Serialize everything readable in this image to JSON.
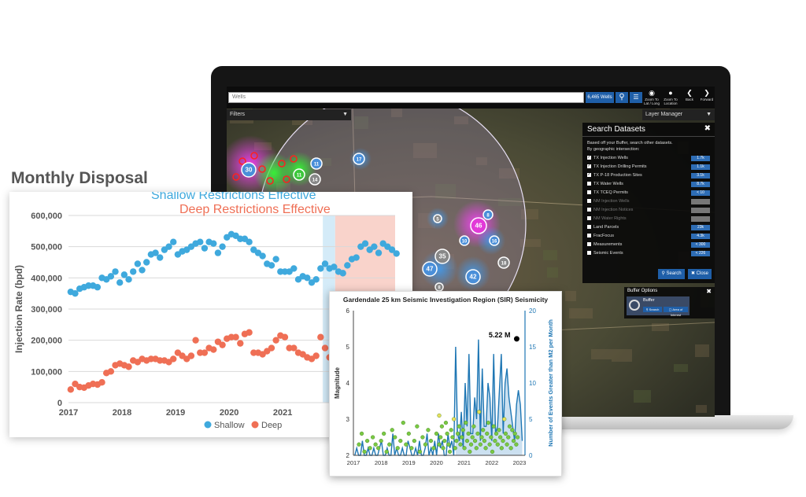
{
  "app": {
    "search_placeholder": "Wells",
    "wells_count": "6,465 Wells",
    "toolbar": [
      {
        "label": "Zoom To Lat / Long",
        "icon": "globe-icon"
      },
      {
        "label": "Zoom To Location",
        "icon": "pin-icon"
      },
      {
        "label": "Back",
        "icon": "chevron-left-icon"
      },
      {
        "label": "Forward",
        "icon": "chevron-right-icon"
      }
    ],
    "filters_label": "Filters",
    "layer_manager_label": "Layer Manager",
    "map_clusters": [
      "30",
      "11",
      "17",
      "11",
      "14",
      "46",
      "8",
      "10",
      "16",
      "35",
      "47",
      "42",
      "18",
      "5",
      "8"
    ],
    "search_datasets": {
      "title": "Search Datasets",
      "description": "Based off your Buffer, search other datasets.",
      "subtitle": "By geographic intersection:",
      "items": [
        {
          "label": "TX Injection Wells",
          "count": "1.7k",
          "checked": true,
          "enabled": true
        },
        {
          "label": "TX Injection Drilling Permits",
          "count": "1.1k",
          "checked": true,
          "enabled": true
        },
        {
          "label": "TX P-18 Production Sites",
          "count": "3.1k",
          "checked": true,
          "enabled": true
        },
        {
          "label": "TX Water Wells",
          "count": "8.7k",
          "checked": false,
          "enabled": true
        },
        {
          "label": "TX TCEQ Permits",
          "count": "< 10",
          "checked": false,
          "enabled": true
        },
        {
          "label": "NM Injection Wells",
          "count": "",
          "checked": false,
          "enabled": false
        },
        {
          "label": "NM Injection Notices",
          "count": "",
          "checked": false,
          "enabled": false
        },
        {
          "label": "NM Water Rights",
          "count": "",
          "checked": false,
          "enabled": false
        },
        {
          "label": "Land Parcels",
          "count": "23k",
          "checked": false,
          "enabled": true
        },
        {
          "label": "FracFocus",
          "count": "4.3k",
          "checked": false,
          "enabled": true
        },
        {
          "label": "Measurements",
          "count": "< 300",
          "checked": false,
          "enabled": true
        },
        {
          "label": "Seismic Events",
          "count": "< 226",
          "checked": false,
          "enabled": true
        }
      ],
      "search_label": "Search",
      "close_label": "Close"
    },
    "buffer_options": {
      "title": "Buffer Options",
      "card_label": "Buffer",
      "search_label": "Search",
      "area_label": "Area of Interest"
    }
  },
  "chart_data": [
    {
      "type": "scatter",
      "title": "Monthly Disposal",
      "annotations": [
        "Shallow Restrictions Effective",
        "Deep Restrictions Effective"
      ],
      "annotation_colors": [
        "#3fa9dd",
        "#ef6f55"
      ],
      "ylabel": "Injection Rate (bpd)",
      "xlabel": "",
      "x_ticks": [
        "2017",
        "2018",
        "2019",
        "2020",
        "2021"
      ],
      "y_ticks": [
        "0",
        "100,000",
        "200,000",
        "300,000",
        "400,000",
        "500,000",
        "600,000"
      ],
      "xlim": [
        2017,
        2023.1
      ],
      "ylim": [
        0,
        600000
      ],
      "grid": true,
      "legend_position": "bottom",
      "shaded_regions": [
        {
          "label": "Shallow Restrictions Effective",
          "from": 2021.75,
          "to": 2021.98,
          "color": "#d4ebf8"
        },
        {
          "label": "Deep Restrictions Effective",
          "from": 2021.98,
          "to": 2023.1,
          "color": "#f9d3cb"
        }
      ],
      "series": [
        {
          "name": "Shallow",
          "color": "#3fa9dd",
          "values": [
            355000,
            350000,
            365000,
            370000,
            375000,
            375000,
            370000,
            400000,
            395000,
            405000,
            420000,
            385000,
            410000,
            395000,
            420000,
            445000,
            425000,
            450000,
            475000,
            480000,
            465000,
            490000,
            500000,
            515000,
            475000,
            485000,
            490000,
            500000,
            510000,
            515000,
            495000,
            515000,
            510000,
            480000,
            500000,
            530000,
            540000,
            535000,
            525000,
            525000,
            515000,
            490000,
            480000,
            470000,
            445000,
            440000,
            460000,
            420000,
            420000,
            420000,
            430000,
            395000,
            405000,
            400000,
            385000,
            395000,
            430000,
            445000,
            430000,
            435000,
            420000,
            415000,
            440000,
            460000,
            465000,
            500000,
            510000,
            490000,
            500000,
            480000,
            510000,
            500000,
            490000,
            478000
          ]
        },
        {
          "name": "Deep",
          "color": "#ef6f55",
          "values": [
            42000,
            60000,
            50000,
            48000,
            55000,
            60000,
            58000,
            65000,
            95000,
            100000,
            120000,
            125000,
            120000,
            115000,
            135000,
            130000,
            140000,
            135000,
            140000,
            140000,
            135000,
            135000,
            130000,
            140000,
            160000,
            150000,
            140000,
            150000,
            200000,
            160000,
            160000,
            175000,
            170000,
            195000,
            185000,
            205000,
            210000,
            210000,
            190000,
            220000,
            225000,
            160000,
            160000,
            155000,
            165000,
            175000,
            200000,
            215000,
            210000,
            175000,
            175000,
            160000,
            155000,
            145000,
            140000,
            150000,
            210000,
            175000,
            145000,
            145000,
            145000,
            125000,
            140000,
            165000,
            165000,
            190000,
            240000,
            255000,
            245000,
            230000,
            210000,
            215000,
            195000,
            188000
          ]
        }
      ]
    },
    {
      "type": "scatter",
      "title": "Gardendale 25 km Seismic Investigation Region (SIR) Seismicity",
      "ylabel": "Magnitude",
      "y2label": "Number of Events Greater than M2 per Month",
      "x_ticks": [
        "2017",
        "2018",
        "2019",
        "2020",
        "2021",
        "2022",
        "2023"
      ],
      "y_ticks": [
        "2",
        "3",
        "4",
        "5",
        "6"
      ],
      "y2_ticks": [
        "0",
        "5",
        "10",
        "15",
        "20"
      ],
      "ylim": [
        2,
        6
      ],
      "y2lim": [
        0,
        20
      ],
      "xlim": [
        2017,
        2023.2
      ],
      "annotation": {
        "label": "5.22 M",
        "x": 2022.9,
        "y": 5.22
      },
      "series": [
        {
          "name": "",
          "color": "#1f77b4",
          "values": [
            0,
            1,
            0,
            0,
            2,
            0,
            0,
            1,
            0,
            0,
            1,
            0,
            0,
            1,
            2,
            0,
            0,
            1,
            0,
            0,
            3,
            0,
            1,
            0,
            0,
            1,
            0,
            0,
            2,
            1,
            0,
            0,
            1,
            0,
            2,
            0,
            0,
            1,
            3,
            0,
            1,
            0,
            2,
            0,
            3,
            1,
            2,
            0,
            0,
            3,
            1,
            2,
            0,
            15,
            3,
            2,
            6,
            1,
            10,
            4,
            14,
            3,
            3,
            8,
            5,
            16,
            2,
            12,
            4,
            4,
            10,
            8,
            2,
            14,
            3,
            4,
            9,
            14,
            3,
            10,
            12,
            8,
            6,
            4,
            2,
            7,
            9,
            7,
            2
          ]
        },
        {
          "name": "",
          "color": "#7ac943",
          "values": [
            2.3,
            2.6,
            2.1,
            2.4,
            2.2,
            2.5,
            2.3,
            2.2,
            2.4,
            2.6,
            2.1,
            2.3,
            2.7,
            2.5,
            2.2,
            2.4,
            2.9,
            2.3,
            2.6,
            2.2,
            2.4,
            2.8,
            2.1,
            2.5,
            2.3,
            2.7,
            2.4,
            2.2,
            2.6,
            3.1,
            2.3,
            2.5,
            2.8,
            2.2,
            2.4,
            2.9,
            2.6,
            2.3,
            2.1,
            2.7,
            2.5,
            3.0,
            2.2,
            2.4,
            2.6,
            2.8,
            2.3,
            2.5,
            2.7,
            2.2,
            2.9,
            2.4,
            2.6,
            2.1,
            2.3,
            2.5,
            2.8,
            2.4,
            2.2,
            2.6,
            3.2,
            2.3,
            2.5,
            2.7,
            2.4,
            2.2,
            2.6,
            2.9,
            2.3,
            2.5,
            2.1,
            2.8,
            2.4,
            2.6,
            2.3,
            2.7,
            2.5,
            2.2,
            2.4,
            3.0,
            2.6,
            2.3,
            2.5,
            2.8,
            2.2,
            2.7,
            2.4,
            2.6,
            2.3,
            2.5
          ]
        }
      ]
    }
  ]
}
